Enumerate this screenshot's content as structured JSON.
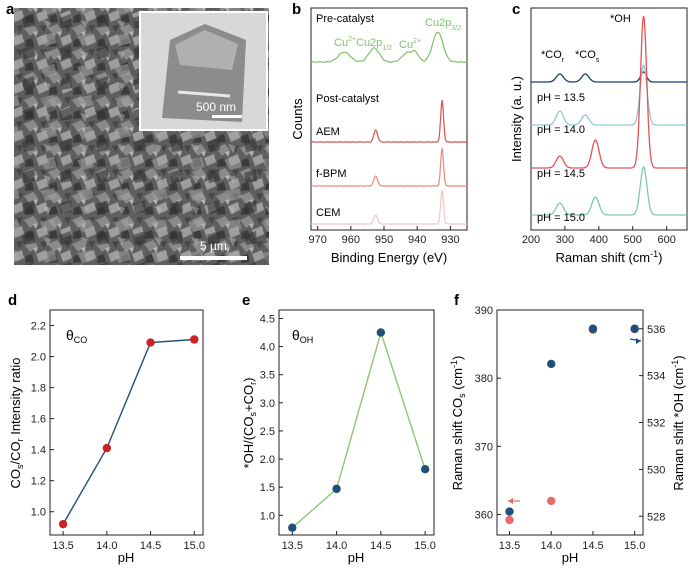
{
  "panel_labels": [
    "a",
    "b",
    "c",
    "d",
    "e",
    "f"
  ],
  "sem": {
    "scale_main": "5 µm",
    "scale_inset": "500 nm"
  },
  "xps": {
    "xlabel": "Binding Energy (eV)",
    "ylabel": "Counts",
    "xticks": [
      "970",
      "960",
      "950",
      "940",
      "930"
    ],
    "pre_title": "Pre-catalyst",
    "post_title": "Post-catalyst",
    "peak_labels": {
      "cu2p1": "Cu2p",
      "cu2p1_sub": "1/2",
      "cu2p3": "Cu2p",
      "cu2p3_sub": "3/2",
      "cu2plus_a": "Cu",
      "cu2plus_a_sup": "2+",
      "cu2plus_b": "Cu",
      "cu2plus_b_sup": "2+"
    },
    "traces": [
      {
        "name": "AEM",
        "color": "#d9524a"
      },
      {
        "name": "f-BPM",
        "color": "#e8897a"
      },
      {
        "name": "CEM",
        "color": "#f2c6bf"
      }
    ],
    "pre_color": "#7fc06a"
  },
  "raman": {
    "xlabel": "Raman shift (cm",
    "xlabel_sup": "-1",
    "xlabel_end": ")",
    "ylabel": "Intensity (a. u.)",
    "xticks": [
      "200",
      "300",
      "400",
      "500",
      "600"
    ],
    "peak_labels": {
      "oh": "*OH",
      "cor": "*CO",
      "cor_sub": "r",
      "cos": "*CO",
      "cos_sub": "s"
    },
    "traces": [
      {
        "name": "pH = 13.5",
        "color": "#1f3d6b"
      },
      {
        "name": "pH = 14.0",
        "color": "#8ecbd6"
      },
      {
        "name": "pH = 14.5",
        "color": "#e05555"
      },
      {
        "name": "pH = 15.0",
        "color": "#7ccab4"
      }
    ]
  },
  "chart_data": [
    {
      "type": "line",
      "panel": "d",
      "annotation": "θCO",
      "xlabel": "pH",
      "ylabel": "COs/COr Intensity ratio",
      "x": [
        13.5,
        14.0,
        14.5,
        15.0
      ],
      "values": [
        0.92,
        1.41,
        2.09,
        2.11
      ],
      "xticks": [
        13.5,
        14.0,
        14.5,
        15.0
      ],
      "yticks": [
        1.0,
        1.2,
        1.4,
        1.6,
        1.8,
        2.0,
        2.2
      ],
      "xlim": [
        13.35,
        15.1
      ],
      "ylim": [
        0.85,
        2.3
      ],
      "marker_color": "#cc2222",
      "line_color": "#1f4f7a"
    },
    {
      "type": "line",
      "panel": "e",
      "annotation": "θOH",
      "xlabel": "pH",
      "ylabel": "*OH/(COs+COr)",
      "x": [
        13.5,
        14.0,
        14.5,
        15.0
      ],
      "values": [
        0.78,
        1.47,
        4.25,
        1.82
      ],
      "xticks": [
        13.5,
        14.0,
        14.5,
        15.0
      ],
      "yticks": [
        1.0,
        1.5,
        2.0,
        2.5,
        3.0,
        3.5,
        4.0,
        4.5
      ],
      "xlim": [
        13.35,
        15.1
      ],
      "ylim": [
        0.65,
        4.65
      ],
      "marker_color": "#1f4f7a",
      "line_color": "#8cc870"
    },
    {
      "type": "scatter",
      "panel": "f",
      "xlabel": "pH",
      "ylabel": "Raman shift COs (cm-1)",
      "ylabel_right": "Raman shift *OH (cm-1)",
      "x": [
        13.5,
        14.0,
        14.5,
        15.0
      ],
      "series": [
        {
          "name": "Raman shift COs",
          "axis": "left",
          "color": "#e86a6a",
          "values": [
            359.2,
            362.0,
            387.1,
            387.2
          ]
        },
        {
          "name": "Raman shift *OH",
          "axis": "right",
          "color": "#1f4f7a",
          "values": [
            528.2,
            534.5,
            536.0,
            536.0
          ]
        }
      ],
      "xticks": [
        13.5,
        14.0,
        14.5,
        15.0
      ],
      "yticks": [
        360,
        370,
        380,
        390
      ],
      "yticks_right": [
        528,
        530,
        532,
        534,
        536
      ],
      "xlim": [
        13.35,
        15.1
      ],
      "ylim": [
        357,
        390
      ],
      "ylim_right": [
        527.2,
        536.8
      ]
    }
  ]
}
